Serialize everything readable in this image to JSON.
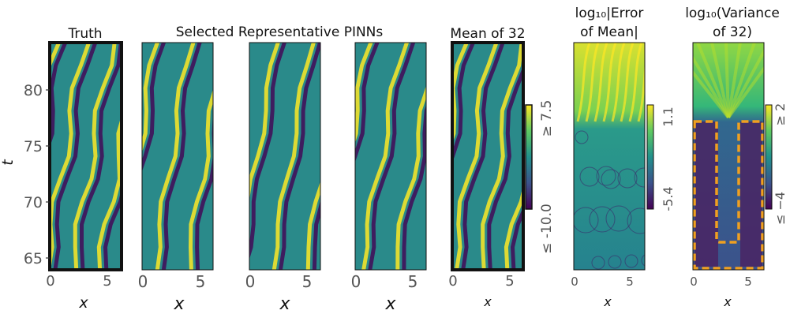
{
  "chart_data": {
    "type": "heatmap",
    "group_title": "Selected Representative PINNs",
    "colors": {
      "low": "#440154",
      "mid": "#21918c",
      "high": "#fde725",
      "dashed_box": "#f0a020"
    },
    "y_axis": {
      "label": "t",
      "ticks": [
        "80",
        "75",
        "70",
        "65"
      ]
    },
    "x_axis": {
      "label": "x",
      "ticks": [
        "0",
        "5"
      ]
    },
    "panels": [
      {
        "id": "truth",
        "title": "Truth",
        "highlighted": true
      },
      {
        "id": "pinn1",
        "title": ""
      },
      {
        "id": "pinn2",
        "title": ""
      },
      {
        "id": "pinn3",
        "title": ""
      },
      {
        "id": "mean",
        "title": "Mean of 32",
        "highlighted": true
      },
      {
        "id": "error",
        "title_line1": "log₁₀|Error",
        "title_line2": "of Mean|"
      },
      {
        "id": "variance",
        "title_line1": "log₁₀(Variance",
        "title_line2": "of 32)"
      }
    ],
    "colorbars": [
      {
        "id": "field",
        "max_label": "≥ 7.5",
        "min_label": "≤ -10.0"
      },
      {
        "id": "error",
        "max_label": "1.1",
        "min_label": "-5.4"
      },
      {
        "id": "variance",
        "max_label": "≥ 2",
        "min_label": "≤ −4"
      }
    ]
  }
}
